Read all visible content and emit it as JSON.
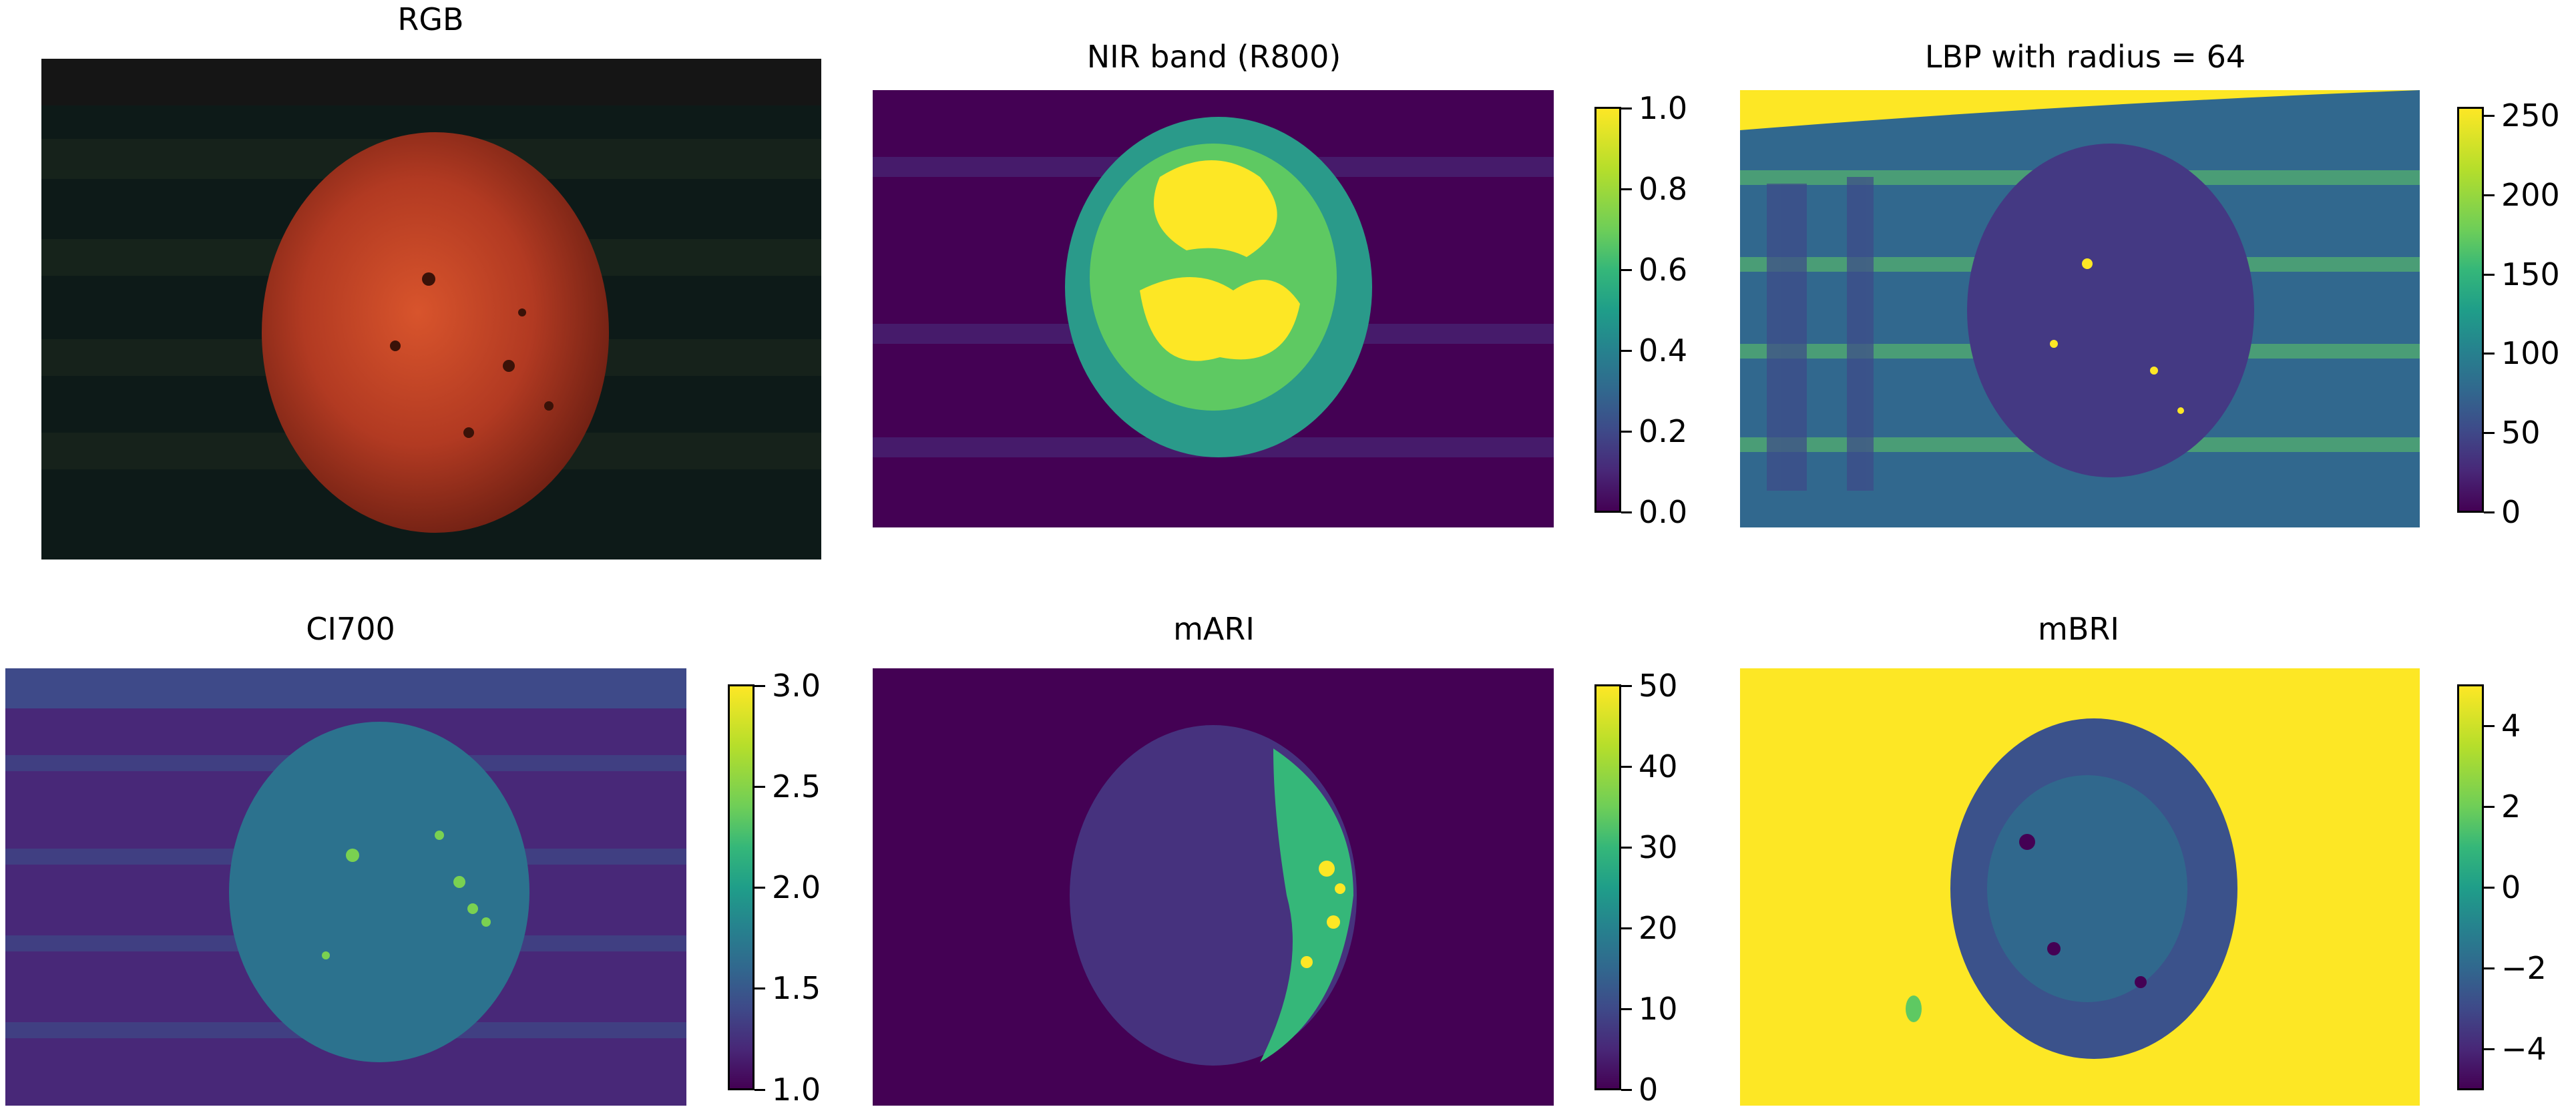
{
  "colormap": "viridis",
  "colors": {
    "dark": "#440154",
    "mid": "#21918c",
    "bright": "#fde725",
    "apple_red": "#b03a22"
  },
  "chart_data": [
    {
      "type": "heatmap",
      "title": "RGB",
      "colorbar": null
    },
    {
      "type": "heatmap",
      "title": "NIR band (R800)",
      "colorbar": {
        "ticks": [
          "0.0",
          "0.2",
          "0.4",
          "0.6",
          "0.8",
          "1.0"
        ],
        "vmin": 0.0,
        "vmax": 1.0
      }
    },
    {
      "type": "heatmap",
      "title": "LBP with radius = 64",
      "colorbar": {
        "ticks": [
          "0",
          "50",
          "100",
          "150",
          "200",
          "250"
        ],
        "vmin": 0,
        "vmax": 255
      }
    },
    {
      "type": "heatmap",
      "title": "CI700",
      "colorbar": {
        "ticks": [
          "1.0",
          "1.5",
          "2.0",
          "2.5",
          "3.0"
        ],
        "vmin": 1.0,
        "vmax": 3.0
      }
    },
    {
      "type": "heatmap",
      "title": "mARI",
      "colorbar": {
        "ticks": [
          "0",
          "10",
          "20",
          "30",
          "40",
          "50"
        ],
        "vmin": 0,
        "vmax": 50
      }
    },
    {
      "type": "heatmap",
      "title": "mBRI",
      "colorbar": {
        "ticks": [
          "−4",
          "−2",
          "0",
          "2",
          "4"
        ],
        "vmin": -5,
        "vmax": 5
      }
    }
  ]
}
